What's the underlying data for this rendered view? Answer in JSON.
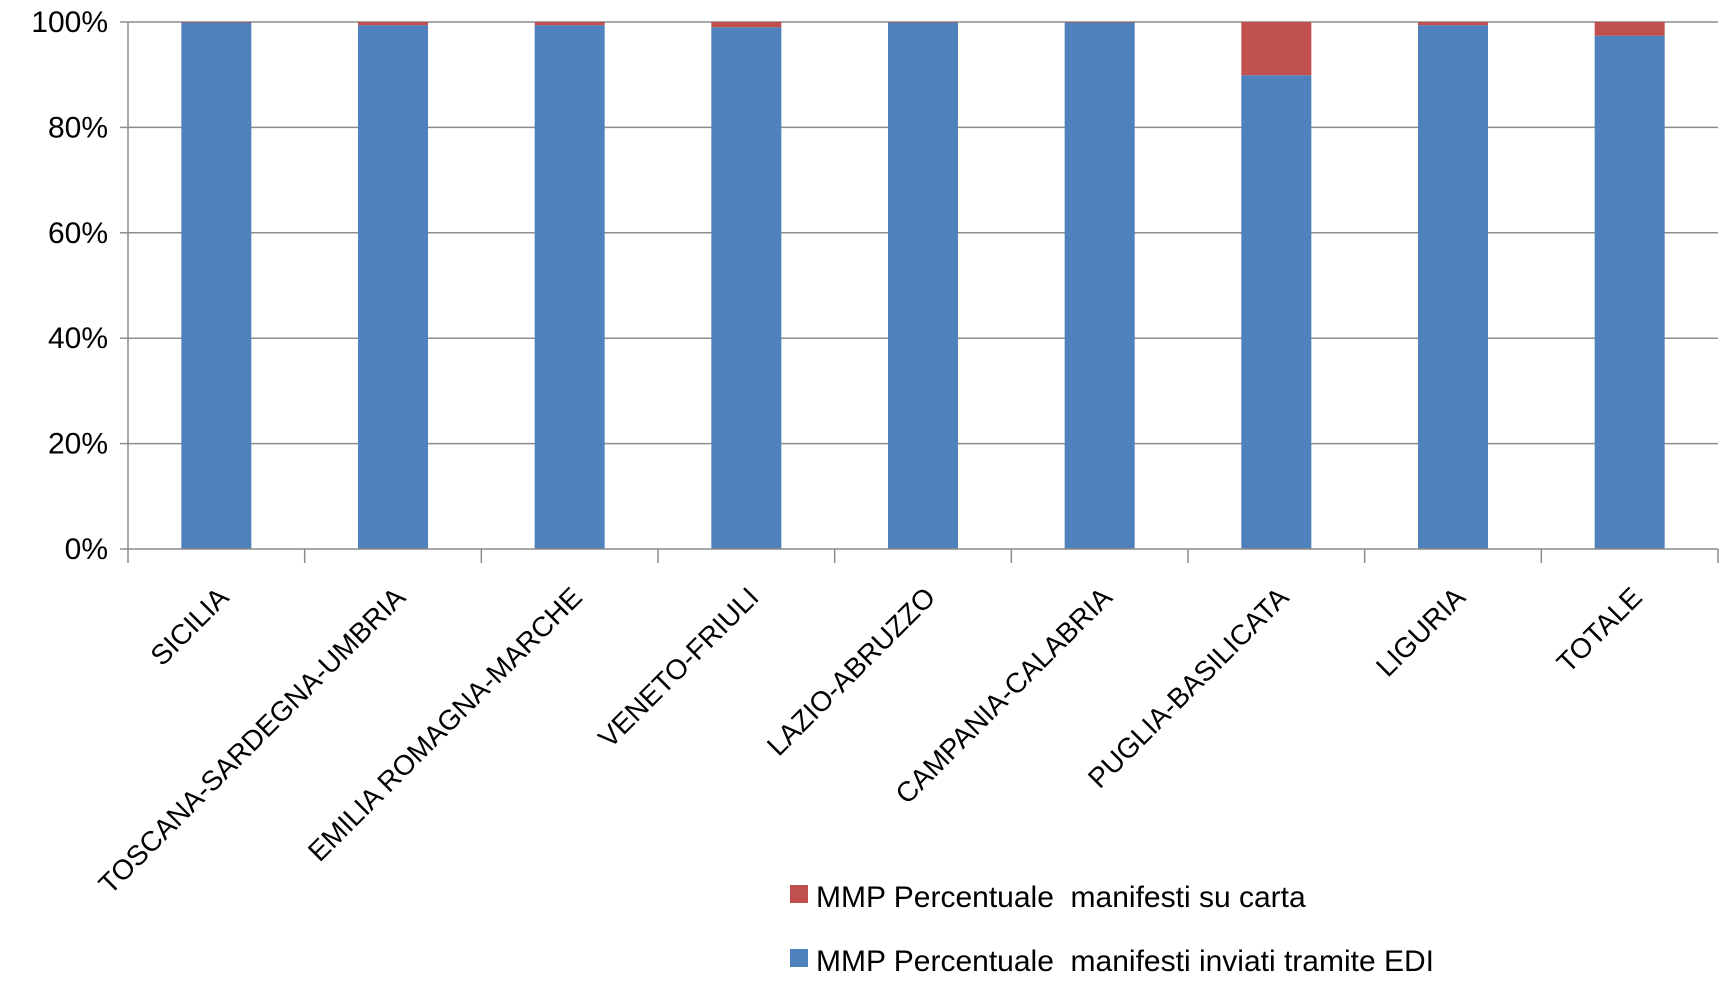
{
  "chart_data": {
    "type": "bar",
    "stacked": true,
    "percent_stacked": true,
    "categories": [
      "SICILIA",
      "TOSCANA-SARDEGNA-UMBRIA",
      "EMILIA ROMAGNA-MARCHE",
      "VENETO-FRIULI",
      "LAZIO-ABRUZZO",
      "CAMPANIA-CALABRIA",
      "PUGLIA-BASILICATA",
      "LIGURIA",
      "TOTALE"
    ],
    "series": [
      {
        "name": "MMP Percentuale  manifesti inviati tramite EDI",
        "color": "#4F81BD",
        "values": [
          99.9,
          99.4,
          99.4,
          99.0,
          99.9,
          99.9,
          89.9,
          99.4,
          97.4
        ]
      },
      {
        "name": "MMP Percentuale  manifesti su carta",
        "color": "#C0504D",
        "values": [
          0.1,
          0.6,
          0.6,
          1.0,
          0.1,
          0.1,
          10.1,
          0.6,
          2.6
        ]
      }
    ],
    "y_ticks": [
      "0%",
      "20%",
      "40%",
      "60%",
      "80%",
      "100%"
    ],
    "ylim": [
      0,
      100
    ],
    "grid": true,
    "legend_position": "bottom-right",
    "legend_order": [
      1,
      0
    ]
  }
}
